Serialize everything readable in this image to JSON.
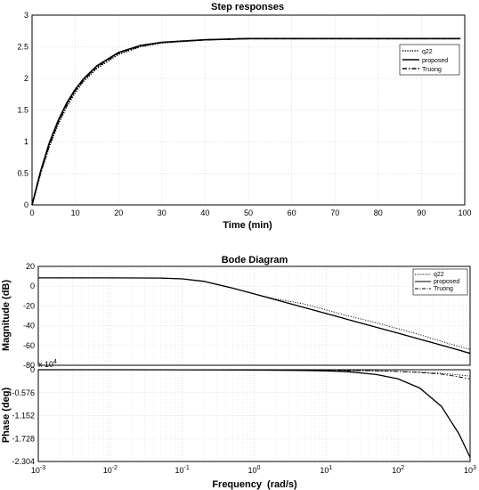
{
  "chart_data": [
    {
      "type": "line",
      "title": "Step responses",
      "xlabel": "Time (min)",
      "ylabel": "",
      "xlim": [
        0,
        100
      ],
      "ylim": [
        0,
        3
      ],
      "x_ticks": [
        0,
        10,
        20,
        30,
        40,
        50,
        60,
        70,
        80,
        90,
        100
      ],
      "y_ticks": [
        "0",
        "0.5",
        "1",
        "1.5",
        "2",
        "2.5",
        "3"
      ],
      "grid": true,
      "legend_position": "top-right",
      "x": [
        0,
        2,
        4,
        6,
        8,
        10,
        12,
        15,
        20,
        25,
        30,
        40,
        50,
        60,
        70,
        80,
        90,
        99
      ],
      "series": [
        {
          "name": "q22",
          "style": "dotted",
          "values": [
            0,
            0.5,
            0.92,
            1.27,
            1.55,
            1.78,
            1.96,
            2.16,
            2.38,
            2.5,
            2.56,
            2.61,
            2.63,
            2.63,
            2.63,
            2.63,
            2.63,
            2.63
          ]
        },
        {
          "name": "proposed",
          "style": "solid",
          "values": [
            0,
            0.54,
            0.98,
            1.33,
            1.61,
            1.83,
            2.0,
            2.2,
            2.41,
            2.52,
            2.57,
            2.61,
            2.63,
            2.63,
            2.63,
            2.63,
            2.63,
            2.63
          ]
        },
        {
          "name": "Truong",
          "style": "dashdot",
          "values": [
            0,
            0.52,
            0.95,
            1.3,
            1.58,
            1.81,
            1.98,
            2.18,
            2.4,
            2.51,
            2.57,
            2.61,
            2.63,
            2.63,
            2.63,
            2.63,
            2.63,
            2.63
          ]
        }
      ]
    },
    {
      "type": "line",
      "title": "Bode Diagram",
      "subplot": "magnitude",
      "xlabel": "Frequency  (rad/s)",
      "ylabel": "Magnitude (dB)",
      "x_scale": "log",
      "xlim": [
        0.001,
        1000
      ],
      "ylim": [
        -80,
        20
      ],
      "y_ticks": [
        "20",
        "0",
        "-20",
        "-40",
        "-60",
        "-80"
      ],
      "grid": true,
      "legend_position": "top-right",
      "x": [
        0.001,
        0.01,
        0.05,
        0.1,
        0.2,
        0.5,
        1,
        2,
        5,
        10,
        20,
        50,
        100,
        200,
        500,
        1000
      ],
      "series": [
        {
          "name": "q22",
          "style": "dotted",
          "values": [
            8.4,
            8.4,
            8.2,
            7.4,
            4.9,
            -2.0,
            -7.8,
            -13.0,
            -18.0,
            -24.0,
            -30.0,
            -37.0,
            -43.0,
            -49.0,
            -58.0,
            -64.0
          ]
        },
        {
          "name": "proposed",
          "style": "solid",
          "values": [
            8.4,
            8.4,
            8.2,
            7.4,
            4.9,
            -2.0,
            -7.8,
            -13.8,
            -21.7,
            -27.7,
            -33.7,
            -41.6,
            -47.6,
            -53.6,
            -61.6,
            -68.0
          ]
        },
        {
          "name": "Truong",
          "style": "dashdot",
          "values": [
            8.4,
            8.4,
            8.2,
            7.4,
            4.9,
            -2.0,
            -7.8,
            -13.8,
            -21.7,
            -27.7,
            -33.7,
            -41.6,
            -47.6,
            -53.6,
            -61.6,
            -67.6
          ]
        }
      ]
    },
    {
      "type": "line",
      "subplot": "phase",
      "ylabel": "Phase (deg)",
      "x_scale": "log",
      "xlim": [
        0.001,
        1000
      ],
      "ylim": [
        -2.304,
        0
      ],
      "y_exponent": "x 10^4",
      "y_ticks": [
        "0",
        "-0.576",
        "-1.152",
        "-1.728",
        "-2.304"
      ],
      "x_ticks": [
        "10^-3",
        "10^-2",
        "10^-1",
        "10^0",
        "10^1",
        "10^2",
        "10^3"
      ],
      "grid": true,
      "x": [
        0.001,
        0.01,
        0.1,
        1,
        5,
        10,
        20,
        50,
        100,
        200,
        400,
        700,
        1000
      ],
      "series": [
        {
          "name": "q22",
          "style": "dotted",
          "values": [
            0,
            0,
            -0.001,
            -0.005,
            -0.01,
            -0.015,
            -0.02,
            -0.03,
            -0.04,
            -0.06,
            -0.09,
            -0.13,
            -0.16
          ]
        },
        {
          "name": "proposed",
          "style": "solid",
          "values": [
            0,
            0,
            -0.002,
            -0.01,
            -0.02,
            -0.03,
            -0.05,
            -0.12,
            -0.23,
            -0.46,
            -0.92,
            -1.61,
            -2.2
          ]
        },
        {
          "name": "Truong",
          "style": "dashdot",
          "values": [
            0,
            0,
            -0.001,
            -0.005,
            -0.01,
            -0.015,
            -0.02,
            -0.03,
            -0.045,
            -0.07,
            -0.11,
            -0.18,
            -0.23
          ]
        }
      ]
    }
  ]
}
